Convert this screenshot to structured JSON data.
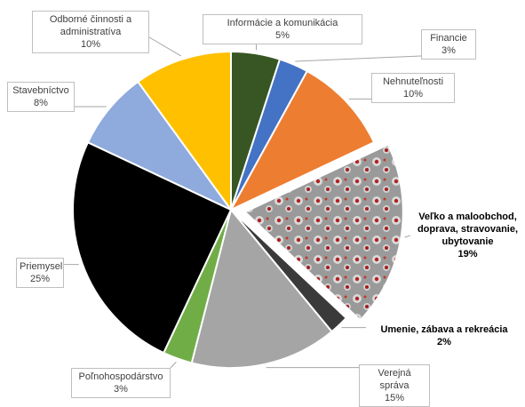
{
  "chart_data": {
    "type": "pie",
    "categories": [
      "Informácie a komunikácia",
      "Financie",
      "Nehnuteľnosti",
      "Veľko a maloobchod, doprava, stravovanie, ubytovanie",
      "Umenie, zábava a rekreácia",
      "Verejná správa",
      "Poľnohospodárstvo",
      "Priemysel",
      "Stavebníctvo",
      "Odborné činnosti a administratíva"
    ],
    "values": [
      5,
      3,
      10,
      19,
      2,
      15,
      3,
      25,
      8,
      10
    ],
    "value_labels": [
      "5%",
      "3%",
      "10%",
      "19%",
      "2%",
      "15%",
      "3%",
      "25%",
      "8%",
      "10%"
    ],
    "colors": [
      "#375623",
      "#4472c4",
      "#ed7d31",
      "#8c8c8c",
      "#3a3a3a",
      "#a5a5a5",
      "#70ad47",
      "#000000",
      "#8faadc",
      "#ffc000"
    ]
  }
}
